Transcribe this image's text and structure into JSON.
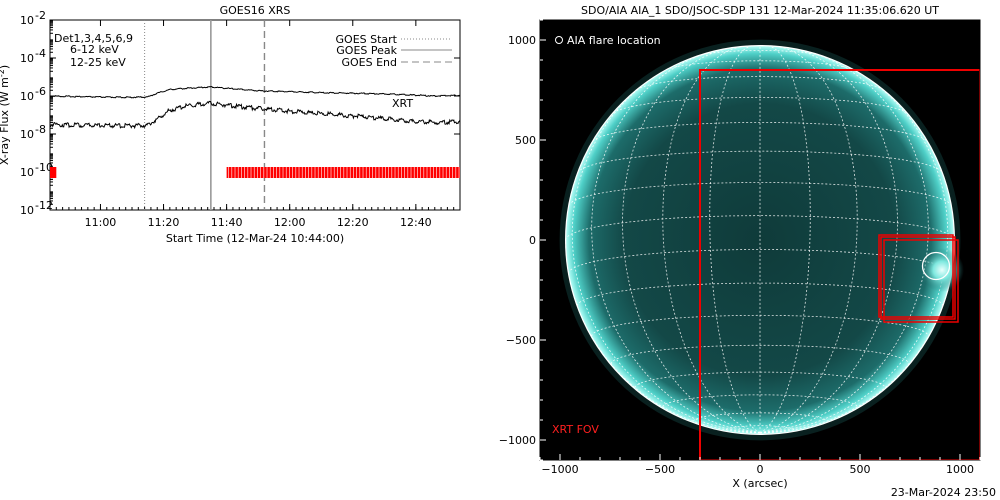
{
  "goes": {
    "title": "GOES16 XRS",
    "ylabel": "X-ray Flux (W m",
    "ylabel_sup": "-2",
    "ylabel_end": ")",
    "xlabel": "Start Time (12-Mar-24 10:44:00)",
    "det_text": "Det1,3,4,5,6,9",
    "band1": "6-12 keV",
    "band2": "12-25 keV",
    "band1_color": "#cc00cc",
    "band2_color": "#00cc00",
    "legend": [
      "GOES Start",
      "GOES Peak",
      "GOES End"
    ],
    "xrt_label": "XRT",
    "xrt_color": "#ff0000"
  },
  "aia": {
    "title": "SDO/AIA AIA_1 SDO/JSOC-SDP 131 12-Mar-2024 11:35:06.620 UT",
    "legend": "AIA flare location",
    "fov_label": "XRT FOV",
    "xlabel": "X (arcsec)",
    "disk_color": "#1a8f8a"
  },
  "footer": "23-Mar-2024 23:50",
  "chart_data": [
    {
      "type": "line",
      "title": "GOES16 XRS",
      "xlabel": "Start Time (12-Mar-24 10:44:00)",
      "ylabel": "X-ray Flux (W m^-2)",
      "yscale": "log",
      "ylim": [
        1e-12,
        0.01
      ],
      "xlim": [
        "10:44",
        "12:54"
      ],
      "x_ticks": [
        "11:00",
        "11:20",
        "11:40",
        "12:00",
        "12:20",
        "12:40"
      ],
      "y_ticks": [
        "10^-12",
        "10^-10",
        "10^-8",
        "10^-6",
        "10^-4",
        "10^-2"
      ],
      "goes_start": "11:14",
      "goes_peak": "11:35",
      "goes_end": "11:52",
      "x": [
        "10:44",
        "10:50",
        "11:00",
        "11:10",
        "11:15",
        "11:18",
        "11:22",
        "11:28",
        "11:35",
        "11:42",
        "11:50",
        "12:00",
        "12:10",
        "12:20",
        "12:30",
        "12:40",
        "12:46",
        "12:54"
      ],
      "series": [
        {
          "values": [
            1e-06,
            9.5e-07,
            8.8e-07,
            8.5e-07,
            9e-07,
            1.4e-06,
            2.2e-06,
            2.6e-06,
            3e-06,
            2.4e-06,
            1.9e-06,
            1.7e-06,
            1.5e-06,
            1.4e-06,
            1.3e-06,
            1.1e-06,
            1e-06,
            1.1e-06
          ]
        },
        {
          "values": [
            3.2e-08,
            3e-08,
            2.8e-08,
            2.7e-08,
            3e-08,
            6e-08,
            1.8e-07,
            3.2e-07,
            4.2e-07,
            3e-07,
            2.2e-07,
            1.6e-07,
            1.2e-07,
            9e-08,
            6.5e-08,
            4.5e-08,
            4e-08,
            4.5e-08
          ]
        }
      ],
      "xrt_coverage": [
        [
          "10:44",
          "10:46"
        ],
        [
          "11:40",
          "12:54"
        ]
      ]
    },
    {
      "type": "image",
      "title": "SDO/AIA AIA_1 SDO/JSOC-SDP 131 12-Mar-2024 11:35:06.620 UT",
      "xlabel": "X (arcsec)",
      "xlim": [
        -1100,
        1100
      ],
      "ylim": [
        -1100,
        1100
      ],
      "x_ticks": [
        -1000,
        -500,
        0,
        500,
        1000
      ],
      "y_ticks": [
        -1000,
        -500,
        0,
        500,
        1000
      ],
      "flare_location": [
        880,
        -130
      ],
      "xrt_fov": [
        -300,
        -1100,
        1100,
        850
      ]
    }
  ]
}
